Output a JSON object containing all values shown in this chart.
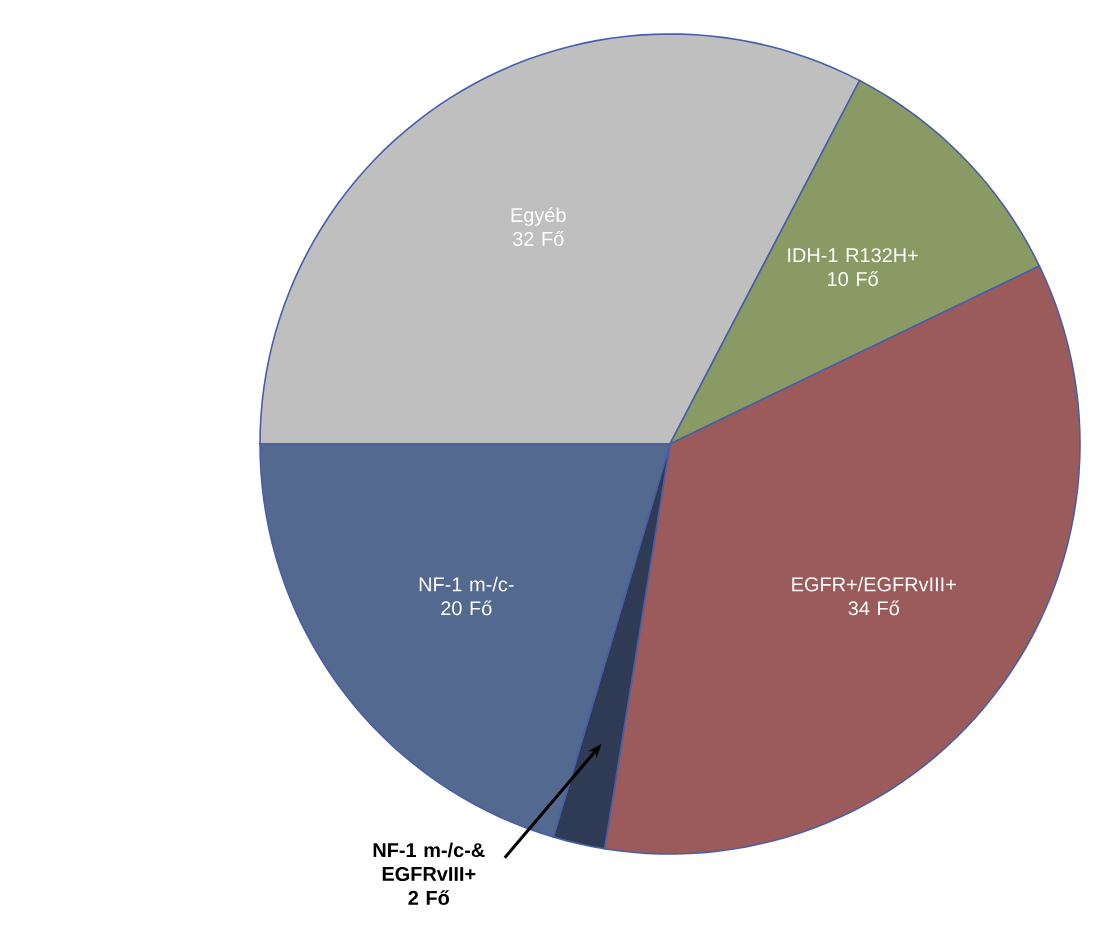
{
  "chart_data": {
    "type": "pie",
    "categories": [
      "Egyéb",
      "IDH-1 R132H+",
      "EGFR+/EGFRvIII+",
      "NF-1 m-/c-& EGFRvIII+",
      "NF-1 m-/c-"
    ],
    "values": [
      32,
      10,
      34,
      2,
      20
    ],
    "value_labels": [
      "32 Fő",
      "10 Fő",
      "34 Fő",
      "2 Fő",
      "20 Fő"
    ],
    "colors": [
      "#bfbfbf",
      "#8a9a64",
      "#9c5b5b",
      "#2f3b54",
      "#53698f"
    ]
  }
}
